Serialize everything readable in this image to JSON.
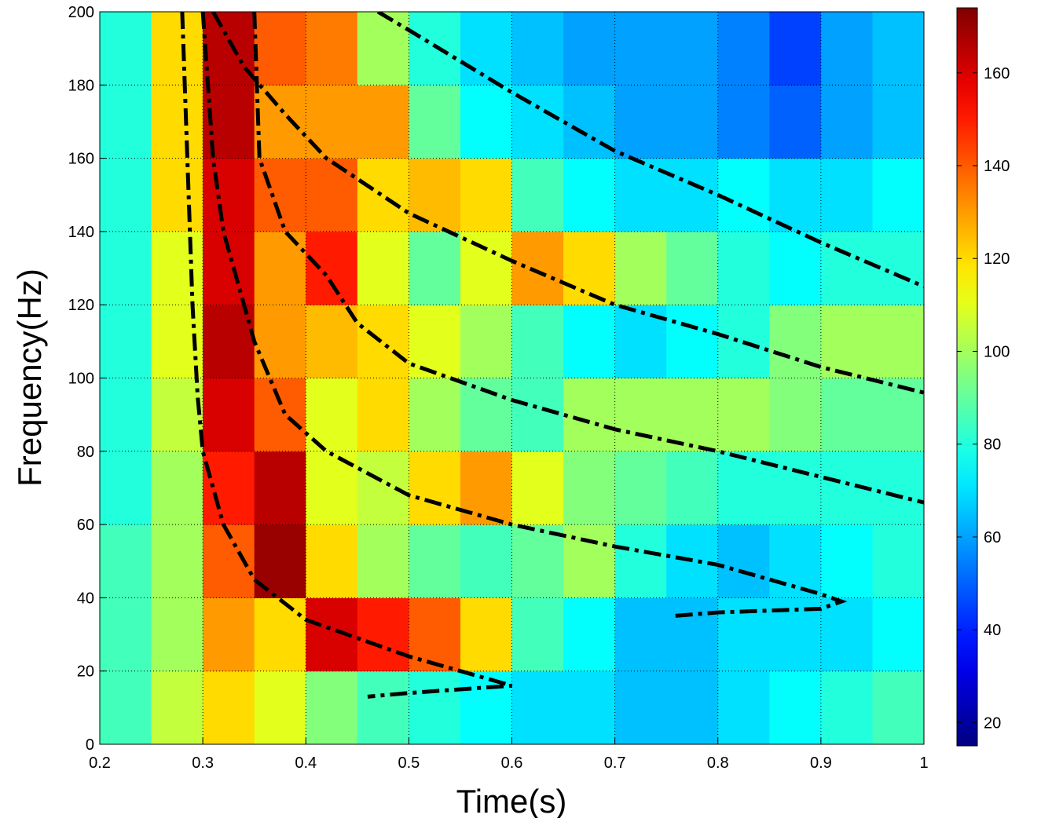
{
  "chart_data": {
    "type": "heatmap",
    "xlabel": "Time(s)",
    "ylabel": "Frequency(Hz)",
    "xlim": [
      0.2,
      1
    ],
    "ylim": [
      0,
      200
    ],
    "xticks": [
      0.2,
      0.3,
      0.4,
      0.5,
      0.6,
      0.7,
      0.8,
      0.9,
      1
    ],
    "yticks": [
      0,
      20,
      40,
      60,
      80,
      100,
      120,
      140,
      160,
      180,
      200
    ],
    "grid": true,
    "colormap": "jet",
    "x_edges": [
      0.2,
      0.25,
      0.3,
      0.35,
      0.4,
      0.45,
      0.5,
      0.55,
      0.6,
      0.65,
      0.7,
      0.75,
      0.8,
      0.85,
      0.9,
      0.95,
      1.0
    ],
    "y_edges": [
      0,
      20,
      40,
      60,
      80,
      100,
      120,
      140,
      160,
      180,
      200
    ],
    "z": [
      [
        85,
        105,
        120,
        110,
        95,
        85,
        80,
        75,
        70,
        70,
        65,
        65,
        70,
        75,
        80,
        85
      ],
      [
        85,
        100,
        130,
        120,
        160,
        150,
        140,
        120,
        85,
        75,
        65,
        65,
        70,
        70,
        70,
        75
      ],
      [
        85,
        100,
        140,
        170,
        120,
        100,
        90,
        85,
        90,
        100,
        80,
        70,
        65,
        70,
        75,
        80
      ],
      [
        80,
        100,
        150,
        165,
        110,
        105,
        120,
        130,
        110,
        95,
        90,
        85,
        80,
        80,
        80,
        80
      ],
      [
        80,
        105,
        160,
        140,
        110,
        120,
        100,
        90,
        85,
        100,
        100,
        100,
        100,
        95,
        90,
        90
      ],
      [
        80,
        110,
        165,
        130,
        125,
        120,
        110,
        100,
        85,
        75,
        70,
        75,
        80,
        95,
        100,
        100
      ],
      [
        80,
        110,
        160,
        130,
        150,
        110,
        90,
        110,
        130,
        120,
        100,
        90,
        80,
        75,
        80,
        80
      ],
      [
        80,
        120,
        160,
        140,
        140,
        120,
        125,
        120,
        85,
        75,
        70,
        70,
        75,
        70,
        70,
        75
      ],
      [
        80,
        120,
        165,
        130,
        130,
        130,
        90,
        75,
        70,
        65,
        60,
        60,
        55,
        50,
        60,
        65
      ],
      [
        80,
        120,
        165,
        140,
        135,
        100,
        80,
        70,
        65,
        60,
        60,
        60,
        55,
        45,
        60,
        65
      ]
    ],
    "colorbar": {
      "clim": [
        15,
        174
      ],
      "ticks": [
        20,
        40,
        60,
        80,
        100,
        120,
        140,
        160
      ]
    },
    "series": [
      {
        "color": "#000000",
        "x": [
          0.28,
          0.285,
          0.29,
          0.295,
          0.3,
          0.32,
          0.35,
          0.4,
          0.45,
          0.5,
          0.55,
          0.6,
          0.55,
          0.5,
          0.46
        ],
        "values": [
          200,
          160,
          120,
          95,
          80,
          60,
          45,
          34,
          29,
          24,
          20,
          16,
          15,
          14,
          13
        ]
      },
      {
        "color": "#000000",
        "x": [
          0.3,
          0.31,
          0.32,
          0.35,
          0.38,
          0.42,
          0.5,
          0.6,
          0.7,
          0.8,
          0.9,
          0.92,
          0.9,
          0.8,
          0.755
        ],
        "values": [
          200,
          160,
          140,
          110,
          90,
          80,
          68,
          60,
          54,
          49,
          41,
          39,
          37,
          36,
          35
        ]
      },
      {
        "color": "#000000",
        "x": [
          0.35,
          0.355,
          0.38,
          0.42,
          0.45,
          0.5,
          0.6,
          0.7,
          0.8,
          0.9,
          1.0
        ],
        "values": [
          200,
          160,
          140,
          128,
          115,
          104,
          94,
          86,
          80,
          73,
          66
        ]
      },
      {
        "color": "#000000",
        "x": [
          0.31,
          0.34,
          0.38,
          0.42,
          0.5,
          0.6,
          0.7,
          0.8,
          0.9,
          1.0
        ],
        "values": [
          200,
          185,
          172,
          160,
          145,
          132,
          120,
          112,
          103,
          96
        ]
      },
      {
        "color": "#000000",
        "x": [
          0.47,
          0.5,
          0.6,
          0.7,
          0.8,
          0.9,
          1.0
        ],
        "values": [
          200,
          195,
          178,
          162,
          150,
          137,
          125
        ]
      }
    ]
  }
}
